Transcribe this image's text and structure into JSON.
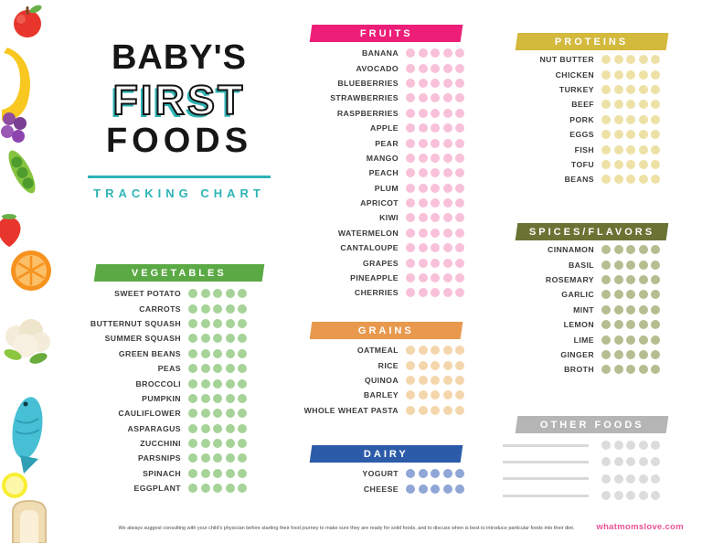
{
  "title": {
    "word1": "BABY'S",
    "word2": "FIRST",
    "word3": "FOODS",
    "subtitle": "TRACKING CHART"
  },
  "colors": {
    "teal": "#2FB4B6",
    "site": "#EA5297"
  },
  "meta": {
    "dots_per_item": 5
  },
  "sections": [
    {
      "id": "vegetables",
      "label": "VEGETABLES",
      "header_color": "#5BA945",
      "dot_color": "#A6D398",
      "items": [
        "SWEET POTATO",
        "CARROTS",
        "BUTTERNUT SQUASH",
        "SUMMER SQUASH",
        "GREEN BEANS",
        "PEAS",
        "BROCCOLI",
        "PUMPKIN",
        "CAULIFLOWER",
        "ASPARAGUS",
        "ZUCCHINI",
        "PARSNIPS",
        "SPINACH",
        "EGGPLANT"
      ]
    },
    {
      "id": "fruits",
      "label": "FRUITS",
      "header_color": "#EC1E78",
      "dot_color": "#F8C0D9",
      "items": [
        "BANANA",
        "AVOCADO",
        "BLUEBERRIES",
        "STRAWBERRIES",
        "RASPBERRIES",
        "APPLE",
        "PEAR",
        "MANGO",
        "PEACH",
        "PLUM",
        "APRICOT",
        "KIWI",
        "WATERMELON",
        "CANTALOUPE",
        "GRAPES",
        "PINEAPPLE",
        "CHERRIES"
      ]
    },
    {
      "id": "grains",
      "label": "GRAINS",
      "header_color": "#E8994E",
      "dot_color": "#F4D6AC",
      "items": [
        "OATMEAL",
        "RICE",
        "QUINOA",
        "BARLEY",
        "WHOLE WHEAT PASTA"
      ]
    },
    {
      "id": "dairy",
      "label": "DAIRY",
      "header_color": "#2C5CA9",
      "dot_color": "#8FA6D6",
      "items": [
        "YOGURT",
        "CHEESE"
      ]
    },
    {
      "id": "proteins",
      "label": "PROTEINS",
      "header_color": "#D3B93C",
      "dot_color": "#EDE1A6",
      "items": [
        "NUT BUTTER",
        "CHICKEN",
        "TURKEY",
        "BEEF",
        "PORK",
        "EGGS",
        "FISH",
        "TOFU",
        "BEANS"
      ]
    },
    {
      "id": "spices",
      "label": "SPICES/FLAVORS",
      "header_color": "#6B7334",
      "dot_color": "#B6BD90",
      "items": [
        "CINNAMON",
        "BASIL",
        "ROSEMARY",
        "GARLIC",
        "MINT",
        "LEMON",
        "LIME",
        "GINGER",
        "BROTH"
      ]
    },
    {
      "id": "other",
      "label": "OTHER FOODS",
      "header_color": "#B5B5B5",
      "dot_color": "#DCDCDC",
      "blank_rows": 4
    }
  ],
  "footer": {
    "disclaimer": "We always suggest consulting with your child's physician before starting their food journey to make sure they are ready for solid foods, and to discuss when is best to introduce particular foods into their diet.",
    "website": "whatmomslove.com"
  }
}
